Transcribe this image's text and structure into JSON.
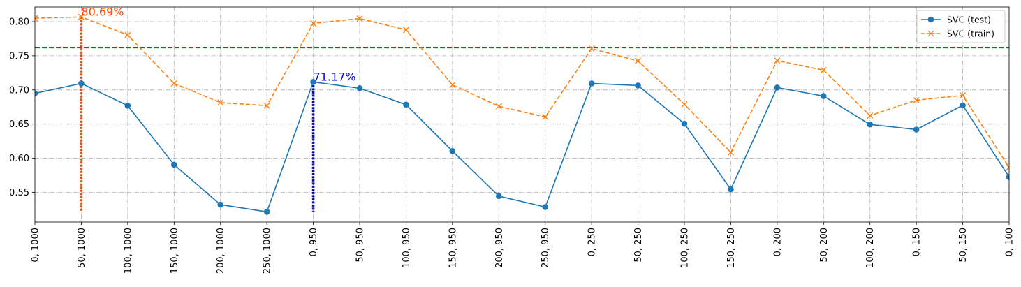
{
  "chart_data": {
    "type": "line",
    "categories": [
      "0, 1000",
      "50, 1000",
      "100, 1000",
      "150, 1000",
      "200, 1000",
      "250, 1000",
      "0, 950",
      "50, 950",
      "100, 950",
      "150, 950",
      "200, 950",
      "250, 950",
      "0, 250",
      "50, 250",
      "100, 250",
      "150, 250",
      "0, 200",
      "50, 200",
      "100, 200",
      "0, 150",
      "50, 150",
      "0, 100"
    ],
    "series": [
      {
        "name": "SVC (test)",
        "color": "#1f77b4",
        "style": "solid",
        "marker": "circle",
        "values": [
          0.695,
          0.7095,
          0.677,
          0.5905,
          0.532,
          0.5215,
          0.7117,
          0.7025,
          0.6785,
          0.6105,
          0.5445,
          0.5285,
          0.7095,
          0.7065,
          0.6505,
          0.5545,
          0.7035,
          0.691,
          0.6495,
          0.642,
          0.6775,
          0.5725
        ]
      },
      {
        "name": "SVC (train)",
        "color": "#ff7f0e",
        "style": "dashed",
        "marker": "x",
        "values": [
          0.805,
          0.8069,
          0.7805,
          0.7095,
          0.6815,
          0.677,
          0.7975,
          0.8045,
          0.788,
          0.7075,
          0.676,
          0.6605,
          0.7605,
          0.7425,
          0.679,
          0.6085,
          0.743,
          0.729,
          0.6625,
          0.685,
          0.692,
          0.5865
        ]
      }
    ],
    "reference_line": {
      "y": 0.762,
      "color": "#008000",
      "style": "dashed"
    },
    "markers": [
      {
        "category_index": 1,
        "y_top": 0.8069,
        "y_bottom": 0.522,
        "label": "80.69%",
        "color": "#ff4500"
      },
      {
        "category_index": 6,
        "y_top": 0.7117,
        "y_bottom": 0.522,
        "label": "71.17%",
        "color": "#0000ff"
      }
    ],
    "yticks": [
      "0.55",
      "0.60",
      "0.65",
      "0.70",
      "0.75",
      "0.80"
    ],
    "ylim": [
      0.5065,
      0.8215
    ],
    "title": "",
    "xlabel": "",
    "ylabel": "",
    "grid": true,
    "legend_position": "top-right"
  }
}
